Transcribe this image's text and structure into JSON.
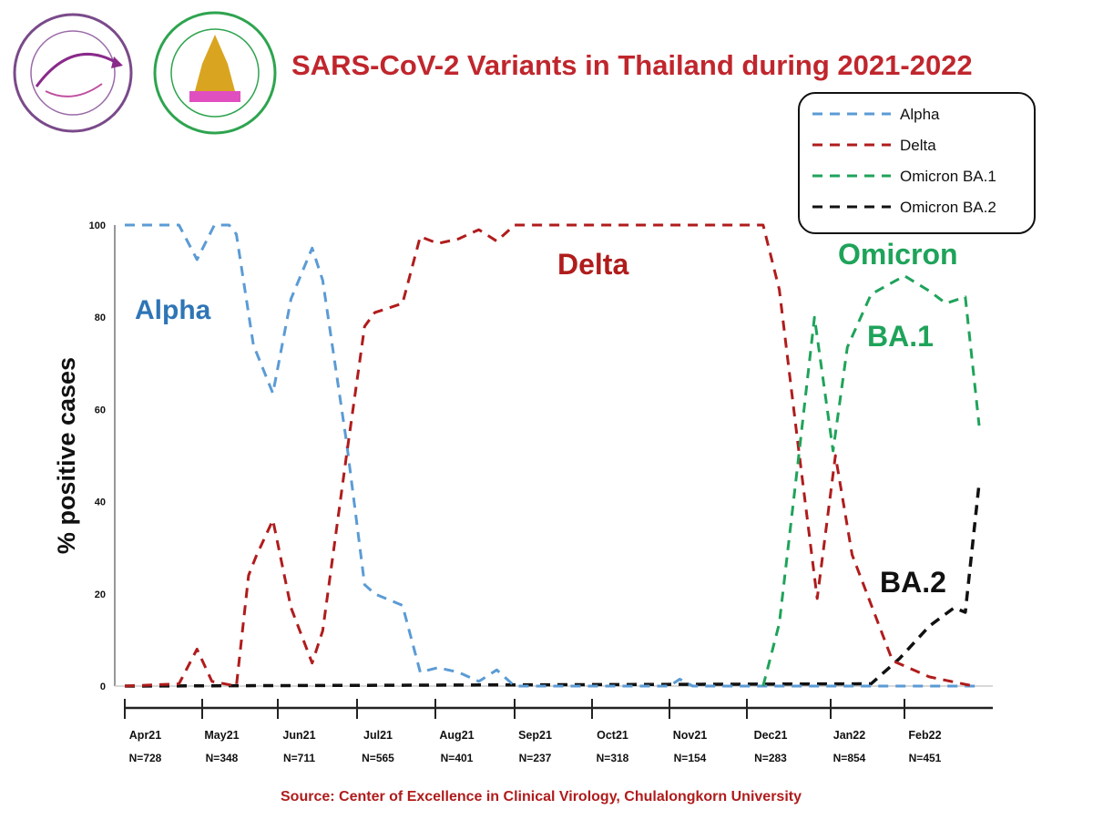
{
  "chart_data": {
    "type": "line",
    "title": "SARS-CoV-2 Variants in Thailand during 2021-2022",
    "ylabel": "% positive cases",
    "xlabel": "",
    "ylim": [
      0,
      100
    ],
    "yticks": [
      0,
      20,
      40,
      60,
      80,
      100
    ],
    "grid": false,
    "legend_position": "top-right",
    "months": [
      {
        "label": "Apr21",
        "n": "N=728",
        "start": "2021-04-01"
      },
      {
        "label": "May21",
        "n": "N=348",
        "start": "2021-05-01"
      },
      {
        "label": "Jun21",
        "n": "N=711",
        "start": "2021-06-01"
      },
      {
        "label": "Jul21",
        "n": "N=565",
        "start": "2021-07-01"
      },
      {
        "label": "Aug21",
        "n": "N=401",
        "start": "2021-08-01"
      },
      {
        "label": "Sep21",
        "n": "N=237",
        "start": "2021-09-01"
      },
      {
        "label": "Oct21",
        "n": "N=318",
        "start": "2021-10-01"
      },
      {
        "label": "Nov21",
        "n": "N=154",
        "start": "2021-11-01"
      },
      {
        "label": "Dec21",
        "n": "N=283",
        "start": "2021-12-01"
      },
      {
        "label": "Jan22",
        "n": "N=854",
        "start": "2022-01-01"
      },
      {
        "label": "Feb22",
        "n": "N=451",
        "start": "2022-02-01"
      }
    ],
    "series": [
      {
        "name": "Alpha",
        "color": "#5b9bd5",
        "points": [
          [
            "2021-04-01",
            100
          ],
          [
            "2021-04-22",
            100
          ],
          [
            "2021-04-29",
            92.5
          ],
          [
            "2021-05-06",
            100
          ],
          [
            "2021-05-12",
            100
          ],
          [
            "2021-05-15",
            98
          ],
          [
            "2021-05-22",
            74
          ],
          [
            "2021-05-30",
            63.5
          ],
          [
            "2021-06-06",
            84
          ],
          [
            "2021-06-14",
            95
          ],
          [
            "2021-06-18",
            88
          ],
          [
            "2021-06-27",
            53
          ],
          [
            "2021-07-04",
            22
          ],
          [
            "2021-07-08",
            20
          ],
          [
            "2021-07-19",
            17.5
          ],
          [
            "2021-07-26",
            3
          ],
          [
            "2021-08-02",
            4
          ],
          [
            "2021-08-10",
            3
          ],
          [
            "2021-08-18",
            1
          ],
          [
            "2021-08-25",
            3.5
          ],
          [
            "2021-09-01",
            0
          ],
          [
            "2021-11-01",
            0
          ],
          [
            "2021-11-05",
            1.5
          ],
          [
            "2021-11-10",
            0
          ],
          [
            "2022-02-28",
            0
          ]
        ]
      },
      {
        "name": "Delta",
        "color": "#b01c1c",
        "points": [
          [
            "2021-04-01",
            0
          ],
          [
            "2021-04-22",
            0.5
          ],
          [
            "2021-04-29",
            8
          ],
          [
            "2021-05-05",
            1
          ],
          [
            "2021-05-15",
            0
          ],
          [
            "2021-05-20",
            24
          ],
          [
            "2021-05-23",
            28
          ],
          [
            "2021-05-30",
            36
          ],
          [
            "2021-06-06",
            17
          ],
          [
            "2021-06-14",
            5
          ],
          [
            "2021-06-18",
            12
          ],
          [
            "2021-06-27",
            50
          ],
          [
            "2021-07-04",
            78
          ],
          [
            "2021-07-08",
            81
          ],
          [
            "2021-07-19",
            83
          ],
          [
            "2021-07-26",
            97.5
          ],
          [
            "2021-08-02",
            96
          ],
          [
            "2021-08-10",
            97
          ],
          [
            "2021-08-18",
            99
          ],
          [
            "2021-08-25",
            96.5
          ],
          [
            "2021-09-01",
            100
          ],
          [
            "2021-09-13",
            100
          ],
          [
            "2021-11-16",
            100
          ],
          [
            "2021-12-07",
            100
          ],
          [
            "2021-12-13",
            86
          ],
          [
            "2021-12-20",
            52
          ],
          [
            "2021-12-27",
            19
          ],
          [
            "2022-01-03",
            50
          ],
          [
            "2022-01-10",
            28.5
          ],
          [
            "2022-01-27",
            5.5
          ],
          [
            "2022-02-10",
            2
          ],
          [
            "2022-02-26",
            0
          ]
        ]
      },
      {
        "name": "Omicron BA.1",
        "color": "#1fa35a",
        "points": [
          [
            "2021-12-07",
            0
          ],
          [
            "2021-12-13",
            13.6
          ],
          [
            "2021-12-20",
            49
          ],
          [
            "2021-12-26",
            80
          ],
          [
            "2022-01-02",
            51
          ],
          [
            "2022-01-08",
            73.5
          ],
          [
            "2022-01-18",
            85
          ],
          [
            "2022-02-01",
            89
          ],
          [
            "2022-02-10",
            85.7
          ],
          [
            "2022-02-16",
            83
          ],
          [
            "2022-02-23",
            84.4
          ],
          [
            "2022-02-28",
            56.5
          ]
        ]
      },
      {
        "name": "Omicron BA.2",
        "color": "#111111",
        "points": [
          [
            "2021-04-01",
            0
          ],
          [
            "2022-01-18",
            0.5
          ],
          [
            "2022-01-30",
            6
          ],
          [
            "2022-02-10",
            13
          ],
          [
            "2022-02-19",
            17
          ],
          [
            "2022-02-23",
            16
          ],
          [
            "2022-02-28",
            44
          ]
        ]
      }
    ],
    "annotations": [
      {
        "text": "Alpha",
        "color": "#2e75b6"
      },
      {
        "text": "Delta",
        "color": "#b01c1c"
      },
      {
        "text": "Omicron",
        "color": "#1fa35a"
      },
      {
        "text": "BA.1",
        "color": "#1fa35a"
      },
      {
        "text": "BA.2",
        "color": "#111111"
      }
    ],
    "source": "Source: Center of Excellence in Clinical Virology, Chulalongkorn University"
  },
  "colors": {
    "title": "#c0262d",
    "source": "#b01c1c"
  },
  "logos": [
    "center-of-excellence-logo",
    "chulalongkorn-medicine-logo"
  ]
}
